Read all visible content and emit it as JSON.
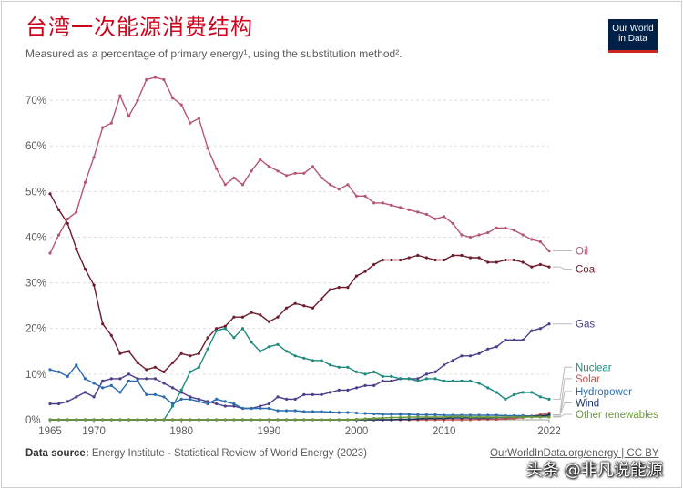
{
  "header": {
    "title": "台湾一次能源消费结构",
    "subtitle": "Measured as a percentage of primary energy¹, using the substitution method².",
    "logo_line1": "Our World",
    "logo_line2": "in Data"
  },
  "footer": {
    "source_label": "Data source:",
    "source_text": "Energy Institute - Statistical Review of World Energy (2023)",
    "link_text": "OurWorldInData.org/energy | CC BY",
    "watermark": "头条 @非凡说能源"
  },
  "chart_data": {
    "type": "line",
    "title": "台湾一次能源消费结构",
    "xlabel": "",
    "ylabel": "",
    "xlim": [
      1965,
      2022
    ],
    "ylim": [
      0,
      75
    ],
    "x_ticks": [
      "1965",
      "1970",
      "1980",
      "1990",
      "2000",
      "2010",
      "2022"
    ],
    "y_ticks": [
      "0%",
      "10%",
      "20%",
      "30%",
      "40%",
      "50%",
      "60%",
      "70%"
    ],
    "grid": "horizontal dashed",
    "legend": "right, labels at line ends",
    "x": [
      1965,
      1966,
      1967,
      1968,
      1969,
      1970,
      1971,
      1972,
      1973,
      1974,
      1975,
      1976,
      1977,
      1978,
      1979,
      1980,
      1981,
      1982,
      1983,
      1984,
      1985,
      1986,
      1987,
      1988,
      1989,
      1990,
      1991,
      1992,
      1993,
      1994,
      1995,
      1996,
      1997,
      1998,
      1999,
      2000,
      2001,
      2002,
      2003,
      2004,
      2005,
      2006,
      2007,
      2008,
      2009,
      2010,
      2011,
      2012,
      2013,
      2014,
      2015,
      2016,
      2017,
      2018,
      2019,
      2020,
      2021,
      2022
    ],
    "series": [
      {
        "name": "Oil",
        "color": "#b55670",
        "values": [
          36.5,
          40.5,
          44,
          45.5,
          52,
          57.5,
          64,
          65,
          71,
          66.5,
          70,
          74.5,
          75,
          74.5,
          70.5,
          69,
          65,
          66,
          59.5,
          55,
          51.5,
          53,
          51.5,
          54.5,
          57,
          55.5,
          54.5,
          53.5,
          54,
          54,
          55.5,
          53,
          51.5,
          50.5,
          51.5,
          49,
          49,
          47.5,
          47.5,
          47,
          46.5,
          46,
          45.5,
          45,
          44,
          44.5,
          43,
          40.5,
          40,
          40.5,
          41,
          42,
          42,
          41.5,
          40.5,
          39.5,
          39,
          37
        ]
      },
      {
        "name": "Coal",
        "color": "#6d1a2b",
        "values": [
          49.5,
          46,
          43,
          37.5,
          33,
          29.5,
          21,
          18.5,
          14.5,
          15,
          12.5,
          11,
          11.5,
          10.5,
          12.5,
          14.5,
          14,
          14.5,
          18,
          20,
          20.5,
          22.5,
          22.5,
          23.5,
          23,
          21.5,
          22.5,
          24.5,
          25.5,
          25,
          24.5,
          26.5,
          28.5,
          29,
          29,
          31.5,
          32.5,
          34,
          35,
          35,
          35,
          35.5,
          36,
          35.5,
          35,
          35,
          36,
          36,
          35.5,
          35.5,
          34.5,
          34.5,
          35,
          35,
          34.5,
          33.5,
          34,
          33.5
        ]
      },
      {
        "name": "Gas",
        "color": "#4c3c8c",
        "values": [
          3.5,
          3.5,
          4,
          5,
          6,
          5,
          8.5,
          9,
          9,
          10,
          9,
          9,
          9,
          8,
          7,
          6,
          5,
          4.5,
          4,
          3.5,
          3,
          3,
          2.5,
          2.5,
          3,
          3.5,
          5,
          4.5,
          4.5,
          5.5,
          5.5,
          5.5,
          6,
          6.5,
          6.5,
          7,
          7.5,
          7.5,
          8.5,
          8.5,
          9,
          9,
          9,
          10,
          10.5,
          12,
          13,
          14,
          14,
          14.5,
          15.5,
          16,
          17.5,
          17.5,
          17.5,
          19.5,
          20,
          21
        ]
      },
      {
        "name": "Nuclear",
        "color": "#1f8a7e",
        "values": [
          0,
          0,
          0,
          0,
          0,
          0,
          0,
          0,
          0,
          0,
          0,
          0,
          0,
          0,
          3,
          6.5,
          10.5,
          11.5,
          15.5,
          19.5,
          20,
          18,
          20,
          17,
          15,
          16,
          16.5,
          15,
          14,
          13.5,
          13,
          13,
          12,
          11.5,
          11.5,
          10.5,
          10,
          10.5,
          9.5,
          9.5,
          9,
          9,
          8.5,
          9,
          9,
          8.5,
          8.5,
          8.5,
          8.5,
          8,
          7,
          6,
          4.5,
          5.5,
          6,
          6,
          5,
          4.5
        ]
      },
      {
        "name": "Solar",
        "color": "#c0504d",
        "values": [
          0,
          0,
          0,
          0,
          0,
          0,
          0,
          0,
          0,
          0,
          0,
          0,
          0,
          0,
          0,
          0,
          0,
          0,
          0,
          0,
          0,
          0,
          0,
          0,
          0,
          0,
          0,
          0,
          0,
          0,
          0,
          0,
          0,
          0,
          0,
          0,
          0,
          0,
          0,
          0,
          0,
          0,
          0,
          0,
          0,
          0,
          0,
          0,
          0,
          0.1,
          0.1,
          0.1,
          0.2,
          0.3,
          0.5,
          0.8,
          1.1,
          1.5
        ]
      },
      {
        "name": "Hydropower",
        "color": "#2a6cb0",
        "values": [
          11,
          10.5,
          9.5,
          12,
          9,
          8,
          7,
          7.5,
          6,
          8.5,
          8.5,
          5.5,
          5.5,
          5,
          3.5,
          4.5,
          4.5,
          4,
          3.5,
          4.5,
          4,
          3.5,
          2.5,
          2.5,
          2.5,
          2.5,
          2,
          2,
          2,
          1.8,
          1.8,
          1.8,
          1.7,
          1.6,
          1.6,
          1.5,
          1.4,
          1.3,
          1.2,
          1.2,
          1.2,
          1.2,
          1.1,
          1.1,
          1.1,
          1,
          1,
          1,
          1,
          1,
          1,
          1,
          0.9,
          0.9,
          0.9,
          0.8,
          0.8,
          0.8
        ]
      },
      {
        "name": "Wind",
        "color": "#1a3263",
        "values": [
          0,
          0,
          0,
          0,
          0,
          0,
          0,
          0,
          0,
          0,
          0,
          0,
          0,
          0,
          0,
          0,
          0,
          0,
          0,
          0,
          0,
          0,
          0,
          0,
          0,
          0,
          0,
          0,
          0,
          0,
          0,
          0,
          0,
          0,
          0,
          0,
          0,
          0,
          0,
          0,
          0.1,
          0.1,
          0.2,
          0.3,
          0.3,
          0.3,
          0.4,
          0.4,
          0.4,
          0.4,
          0.4,
          0.5,
          0.5,
          0.6,
          0.6,
          0.7,
          0.8,
          1.1
        ]
      },
      {
        "name": "Other renewables",
        "color": "#6b9a3a",
        "values": [
          0,
          0,
          0,
          0,
          0,
          0,
          0,
          0,
          0,
          0,
          0,
          0,
          0,
          0,
          0,
          0,
          0,
          0,
          0,
          0,
          0,
          0,
          0,
          0,
          0,
          0,
          0,
          0,
          0,
          0,
          0,
          0,
          0,
          0,
          0,
          0.1,
          0.2,
          0.3,
          0.4,
          0.5,
          0.5,
          0.6,
          0.6,
          0.6,
          0.6,
          0.6,
          0.7,
          0.7,
          0.6,
          0.6,
          0.6,
          0.6,
          0.6,
          0.6,
          0.6,
          0.6,
          0.6,
          0.6
        ]
      }
    ],
    "label_positions": {
      "Oil": 37,
      "Coal": 33,
      "Gas": 21,
      "Nuclear": 11.5,
      "Solar": 9,
      "Hydropower": 6.2,
      "Wind": 3.7,
      "Other renewables": 1.2
    }
  }
}
